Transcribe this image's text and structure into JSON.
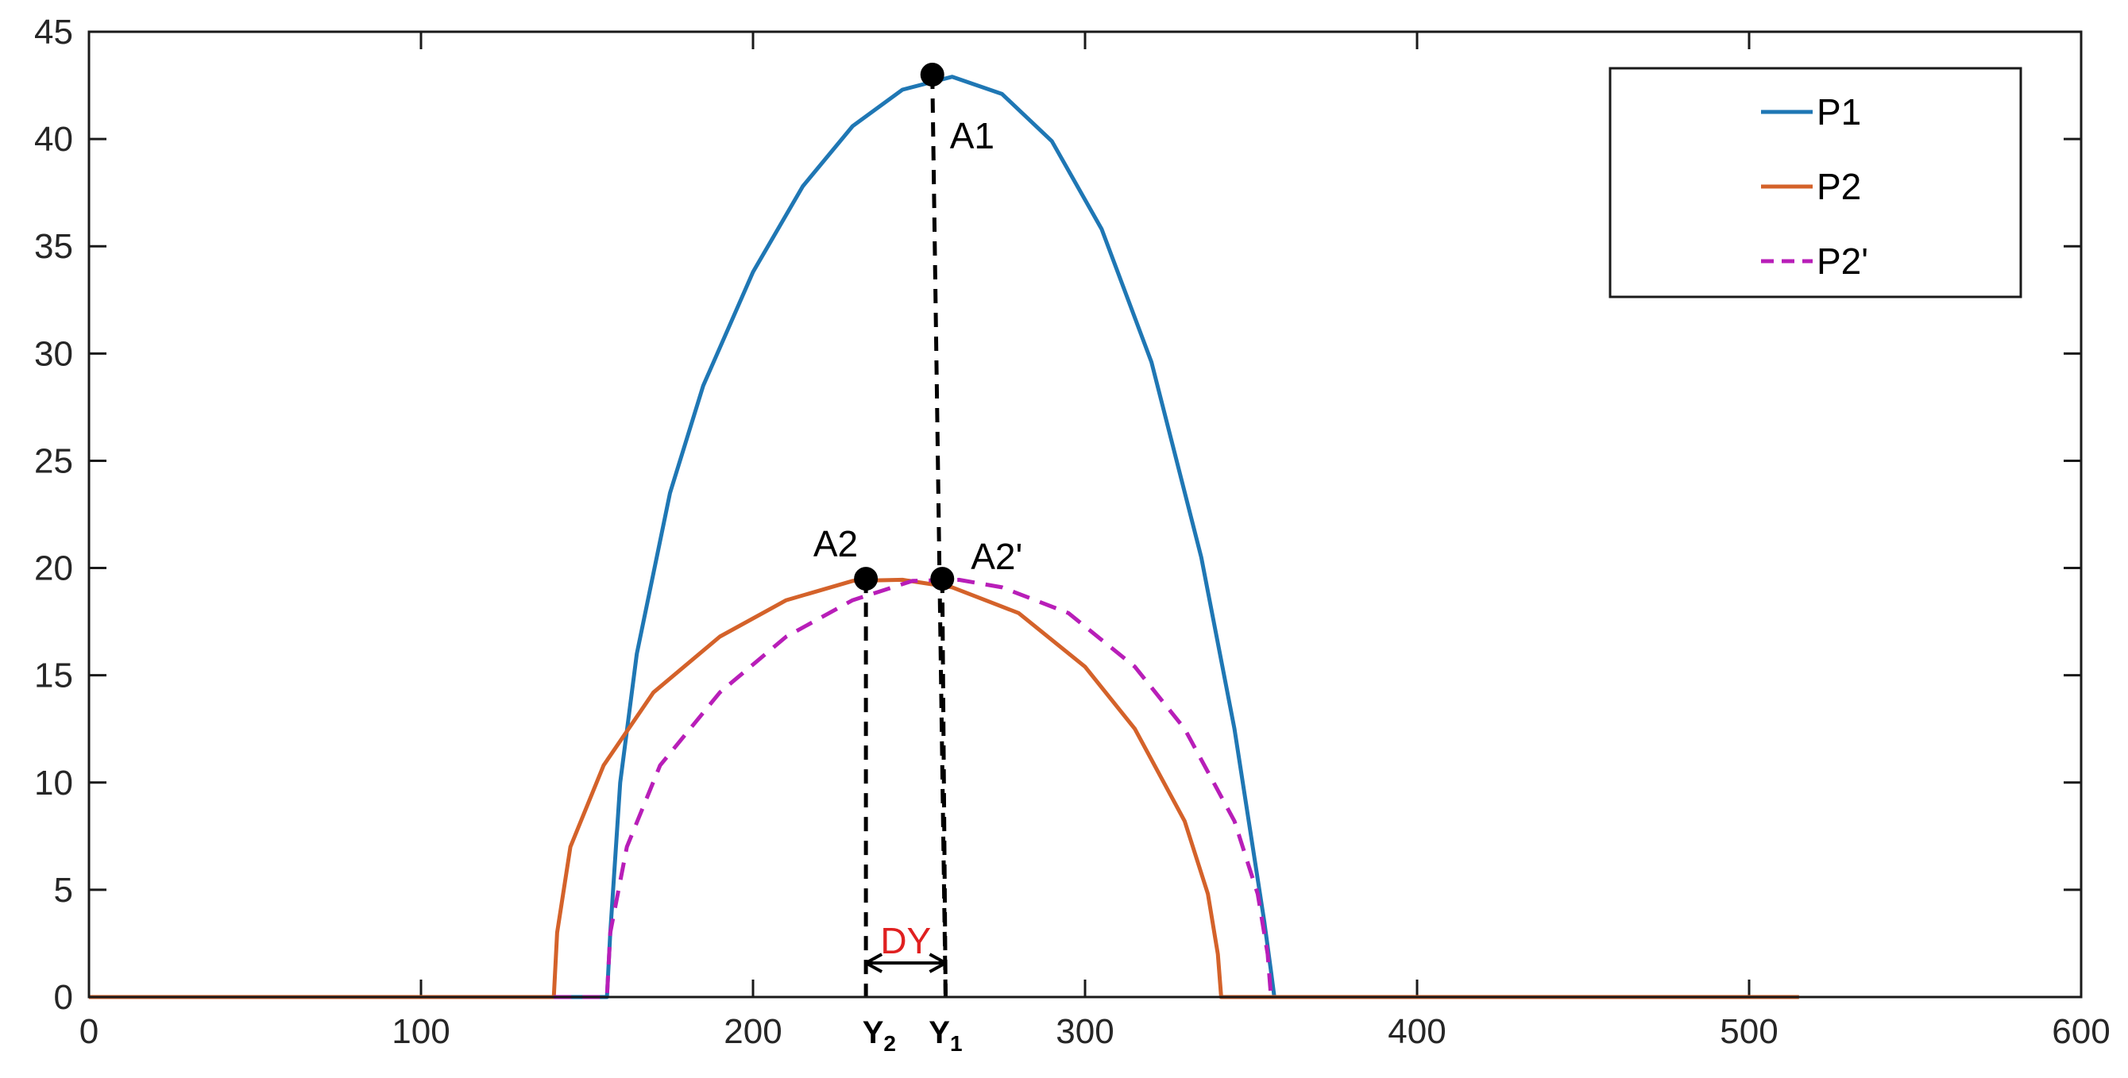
{
  "chart_data": {
    "type": "line",
    "title": "",
    "xlabel": "",
    "ylabel": "",
    "xlim": [
      0,
      600
    ],
    "ylim": [
      0,
      45
    ],
    "x_ticks": [
      0,
      100,
      200,
      300,
      400,
      500,
      600
    ],
    "y_ticks": [
      0,
      5,
      10,
      15,
      20,
      25,
      30,
      35,
      40,
      45
    ],
    "grid": false,
    "legend_position": "top-right",
    "series": [
      {
        "name": "P1",
        "color": "#1f77b4",
        "style": "solid",
        "x": [
          0,
          156,
          157,
          160,
          165,
          175,
          185,
          200,
          215,
          230,
          245,
          260,
          275,
          290,
          305,
          320,
          335,
          345,
          350,
          354,
          356,
          357,
          515
        ],
        "y": [
          0,
          0,
          3,
          10,
          16,
          23.5,
          28.5,
          33.8,
          37.8,
          40.6,
          42.3,
          42.9,
          42.1,
          39.9,
          35.8,
          29.6,
          20.5,
          12.5,
          7.5,
          3.5,
          1.2,
          0,
          0
        ]
      },
      {
        "name": "P2",
        "color": "#d4622a",
        "style": "solid",
        "x": [
          0,
          140,
          141,
          145,
          155,
          170,
          190,
          210,
          230,
          245,
          260,
          280,
          300,
          315,
          330,
          337,
          340,
          341,
          515
        ],
        "y": [
          0,
          0,
          3,
          7,
          10.8,
          14.2,
          16.8,
          18.5,
          19.4,
          19.45,
          19.1,
          17.9,
          15.4,
          12.5,
          8.2,
          4.8,
          2,
          0,
          0
        ]
      },
      {
        "name": "P2'",
        "color": "#b81eb8",
        "style": "dashed",
        "x": [
          140,
          156,
          157,
          162,
          172,
          190,
          210,
          230,
          248,
          262,
          275,
          295,
          315,
          330,
          345,
          352,
          355,
          356
        ],
        "y": [
          0,
          0,
          3,
          7,
          10.8,
          14.2,
          16.8,
          18.5,
          19.4,
          19.45,
          19.1,
          17.9,
          15.4,
          12.5,
          8.2,
          4.8,
          2,
          0
        ]
      }
    ],
    "markers": [
      {
        "label": "A1",
        "x": 254,
        "y": 43.0
      },
      {
        "label": "A2",
        "x": 234,
        "y": 19.5
      },
      {
        "label": "A2'",
        "x": 257,
        "y": 19.5
      }
    ],
    "guide_lines": [
      {
        "x_top": 254,
        "y_top": 43.0,
        "x_bottom": 258
      },
      {
        "x_top": 234,
        "y_top": 19.5,
        "x_bottom": 234
      },
      {
        "x_top": 257,
        "y_top": 19.5,
        "x_bottom": 258
      }
    ],
    "axis_annotations": [
      {
        "label": "Y",
        "sub": "2",
        "x": 238
      },
      {
        "label": "Y",
        "sub": "1",
        "x": 258
      }
    ],
    "dy_annotation": {
      "label": "DY",
      "color": "#e02020",
      "x_from": 234,
      "x_to": 258,
      "y": 1.4
    }
  }
}
